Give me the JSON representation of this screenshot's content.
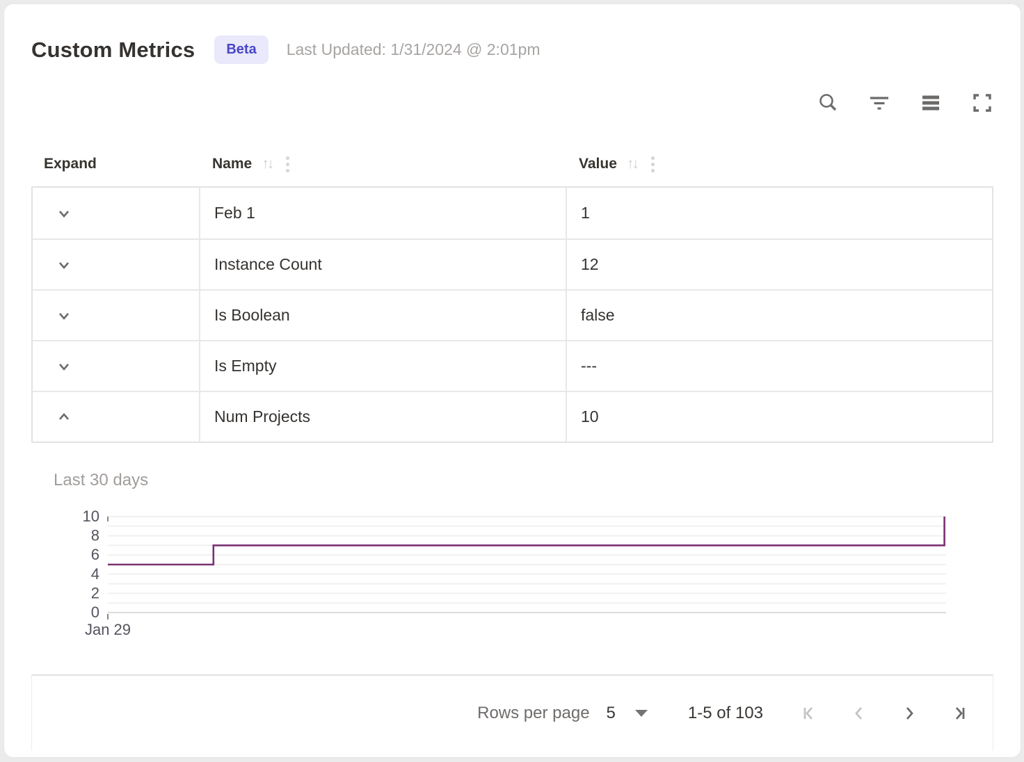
{
  "header": {
    "title": "Custom Metrics",
    "beta_badge": "Beta",
    "last_updated": "Last Updated: 1/31/2024 @ 2:01pm"
  },
  "toolbar": {
    "icons": [
      "search",
      "filter",
      "density",
      "fullscreen"
    ]
  },
  "table": {
    "columns": [
      {
        "label": "Expand",
        "sortable": false,
        "menu": false
      },
      {
        "label": "Name",
        "sortable": true,
        "menu": true
      },
      {
        "label": "Value",
        "sortable": true,
        "menu": true
      }
    ],
    "sort_icon": "↑↓",
    "rows": [
      {
        "name": "Feb 1",
        "value": "1",
        "expanded": false
      },
      {
        "name": "Instance Count",
        "value": "12",
        "expanded": false
      },
      {
        "name": "Is Boolean",
        "value": "false",
        "expanded": false
      },
      {
        "name": "Is Empty",
        "value": "---",
        "expanded": false
      },
      {
        "name": "Num Projects",
        "value": "10",
        "expanded": true
      }
    ]
  },
  "chart_data": {
    "type": "line",
    "line_style": "step",
    "title": "Last 30 days",
    "series": [
      {
        "name": "Num Projects",
        "points": [
          {
            "x_pct": 0,
            "y": 5
          },
          {
            "x_pct": 12.6,
            "y": 5
          },
          {
            "x_pct": 12.6,
            "y": 7
          },
          {
            "x_pct": 99.8,
            "y": 7
          },
          {
            "x_pct": 99.8,
            "y": 10
          }
        ]
      }
    ],
    "ylim": [
      0,
      10
    ],
    "y_tick_labels": [
      0,
      2,
      4,
      6,
      8,
      10
    ],
    "y_gridline_step": 1,
    "x_tick_labels": [
      "Jan 29"
    ],
    "grid": "horizontal",
    "legend": "none",
    "line_color": "#7b3173",
    "gridline_color": "#f1f0f0",
    "axis_label_color": "#55525e"
  },
  "footer": {
    "rows_per_page_label": "Rows per page",
    "rows_per_page_value": "5",
    "range_label": "1-5 of 103",
    "pagination": [
      {
        "name": "first-page",
        "disabled": true
      },
      {
        "name": "previous-page",
        "disabled": true
      },
      {
        "name": "next-page",
        "disabled": false
      },
      {
        "name": "last-page",
        "disabled": false
      }
    ]
  },
  "colors": {
    "accent_line": "#7b3173",
    "beta_bg": "#e9e9fb",
    "beta_text": "#4946c8",
    "text_primary": "#35322f",
    "text_muted": "#a7a4a2",
    "border": "#e4e2e2",
    "icon": "#6d6b69",
    "icon_disabled": "#c6c4c3"
  }
}
